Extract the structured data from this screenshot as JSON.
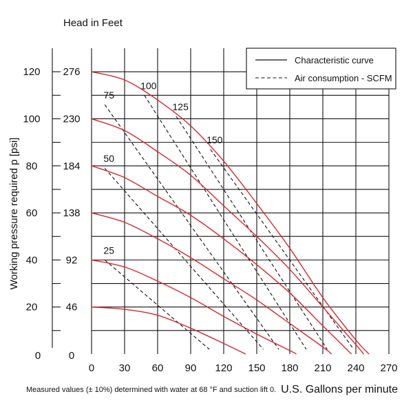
{
  "chart_data": {
    "type": "line",
    "title": "Head in Feet",
    "xlabel": "U.S. Gallons per minute",
    "ylabel": "Working pressure required p [psi]",
    "note": "Measured values (± 10%) determined with water at 68 °F and suction lift 0.",
    "xlim": [
      0,
      270
    ],
    "ylim": [
      0,
      130
    ],
    "x_ticks": [
      "0",
      "30",
      "60",
      "90",
      "120",
      "150",
      "180",
      "210",
      "240",
      "270"
    ],
    "y_ticks_psi": [
      "0",
      "20",
      "40",
      "60",
      "80",
      "100",
      "120"
    ],
    "y_ticks_head_feet": [
      "0",
      "46",
      "92",
      "138",
      "184",
      "230",
      "276"
    ],
    "grid": true,
    "legend": {
      "placement": "top-right",
      "entries": [
        "Characteristic curve",
        "Air consumption - SCFM"
      ]
    },
    "colors": {
      "characteristic_curve": "#d8262e",
      "air_consumption": "#111111"
    },
    "series": [
      {
        "pressure_psi": 120,
        "x": [
          0,
          30,
          60,
          90,
          120,
          150,
          180,
          210,
          240,
          252
        ],
        "y": [
          120,
          116.5,
          108,
          97,
          82,
          64,
          45,
          24,
          6,
          0
        ]
      },
      {
        "pressure_psi": 100,
        "x": [
          0,
          30,
          60,
          90,
          120,
          150,
          180,
          210,
          240,
          247
        ],
        "y": [
          100,
          95,
          86,
          76,
          63,
          50,
          36,
          20,
          4,
          0
        ]
      },
      {
        "pressure_psi": 80,
        "x": [
          0,
          30,
          60,
          90,
          120,
          150,
          180,
          210,
          236
        ],
        "y": [
          80,
          75,
          67,
          59,
          49,
          38,
          26,
          12,
          0
        ]
      },
      {
        "pressure_psi": 60,
        "x": [
          0,
          30,
          60,
          90,
          120,
          150,
          180,
          210,
          218
        ],
        "y": [
          60,
          56,
          49,
          41,
          32,
          23,
          13,
          3,
          0
        ]
      },
      {
        "pressure_psi": 40,
        "x": [
          0,
          30,
          60,
          90,
          120,
          150,
          180,
          186
        ],
        "y": [
          40,
          37,
          31,
          24,
          16,
          8.5,
          1.5,
          0
        ]
      },
      {
        "pressure_psi": 20,
        "x": [
          0,
          30,
          60,
          90,
          120,
          140
        ],
        "y": [
          20,
          19,
          16.5,
          11,
          4.5,
          0
        ]
      }
    ],
    "air_consumption_lines": [
      {
        "label": "25",
        "x": [
          12,
          107
        ],
        "y": [
          40,
          2
        ]
      },
      {
        "label": "50",
        "x": [
          12,
          156
        ],
        "y": [
          79,
          2
        ]
      },
      {
        "label": "75",
        "x": [
          12,
          170
        ],
        "y": [
          106,
          2
        ]
      },
      {
        "label": "100",
        "x": [
          48,
          195
        ],
        "y": [
          110,
          2
        ]
      },
      {
        "label": "125",
        "x": [
          77,
          214
        ],
        "y": [
          101,
          2
        ]
      },
      {
        "label": "150",
        "x": [
          108,
          238
        ],
        "y": [
          87,
          2
        ]
      }
    ]
  }
}
